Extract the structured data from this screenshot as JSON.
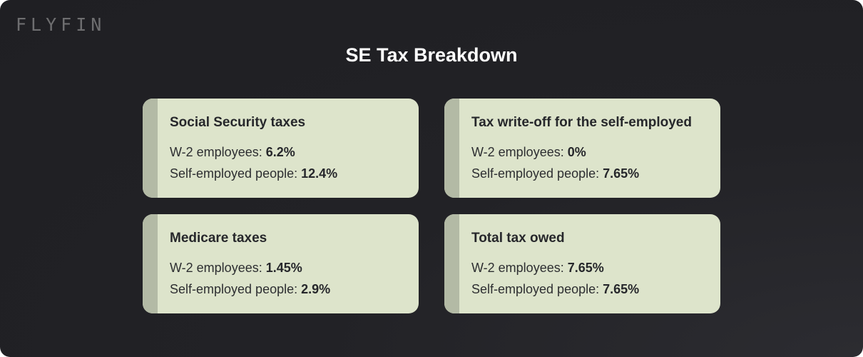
{
  "logo": "FLYFIN",
  "title": "SE Tax Breakdown",
  "cards": [
    {
      "heading": "Social Security taxes",
      "w2_label": "W-2 employees: ",
      "w2_value": "6.2%",
      "se_label": "Self-employed people: ",
      "se_value": "12.4%"
    },
    {
      "heading": "Tax write-off for the self-employed",
      "w2_label": "W-2 employees: ",
      "w2_value": "0%",
      "se_label": "Self-employed people: ",
      "se_value": "7.65%"
    },
    {
      "heading": "Medicare taxes",
      "w2_label": "W-2 employees: ",
      "w2_value": "1.45%",
      "se_label": "Self-employed people: ",
      "se_value": "2.9%"
    },
    {
      "heading": "Total tax owed",
      "w2_label": "W-2 employees: ",
      "w2_value": "7.65%",
      "se_label": "Self-employed people: ",
      "se_value": "7.65%"
    }
  ],
  "colors": {
    "background": "#202024",
    "card": "#dde4cb",
    "card_strip": "#b3baa5",
    "title": "#ffffff"
  }
}
